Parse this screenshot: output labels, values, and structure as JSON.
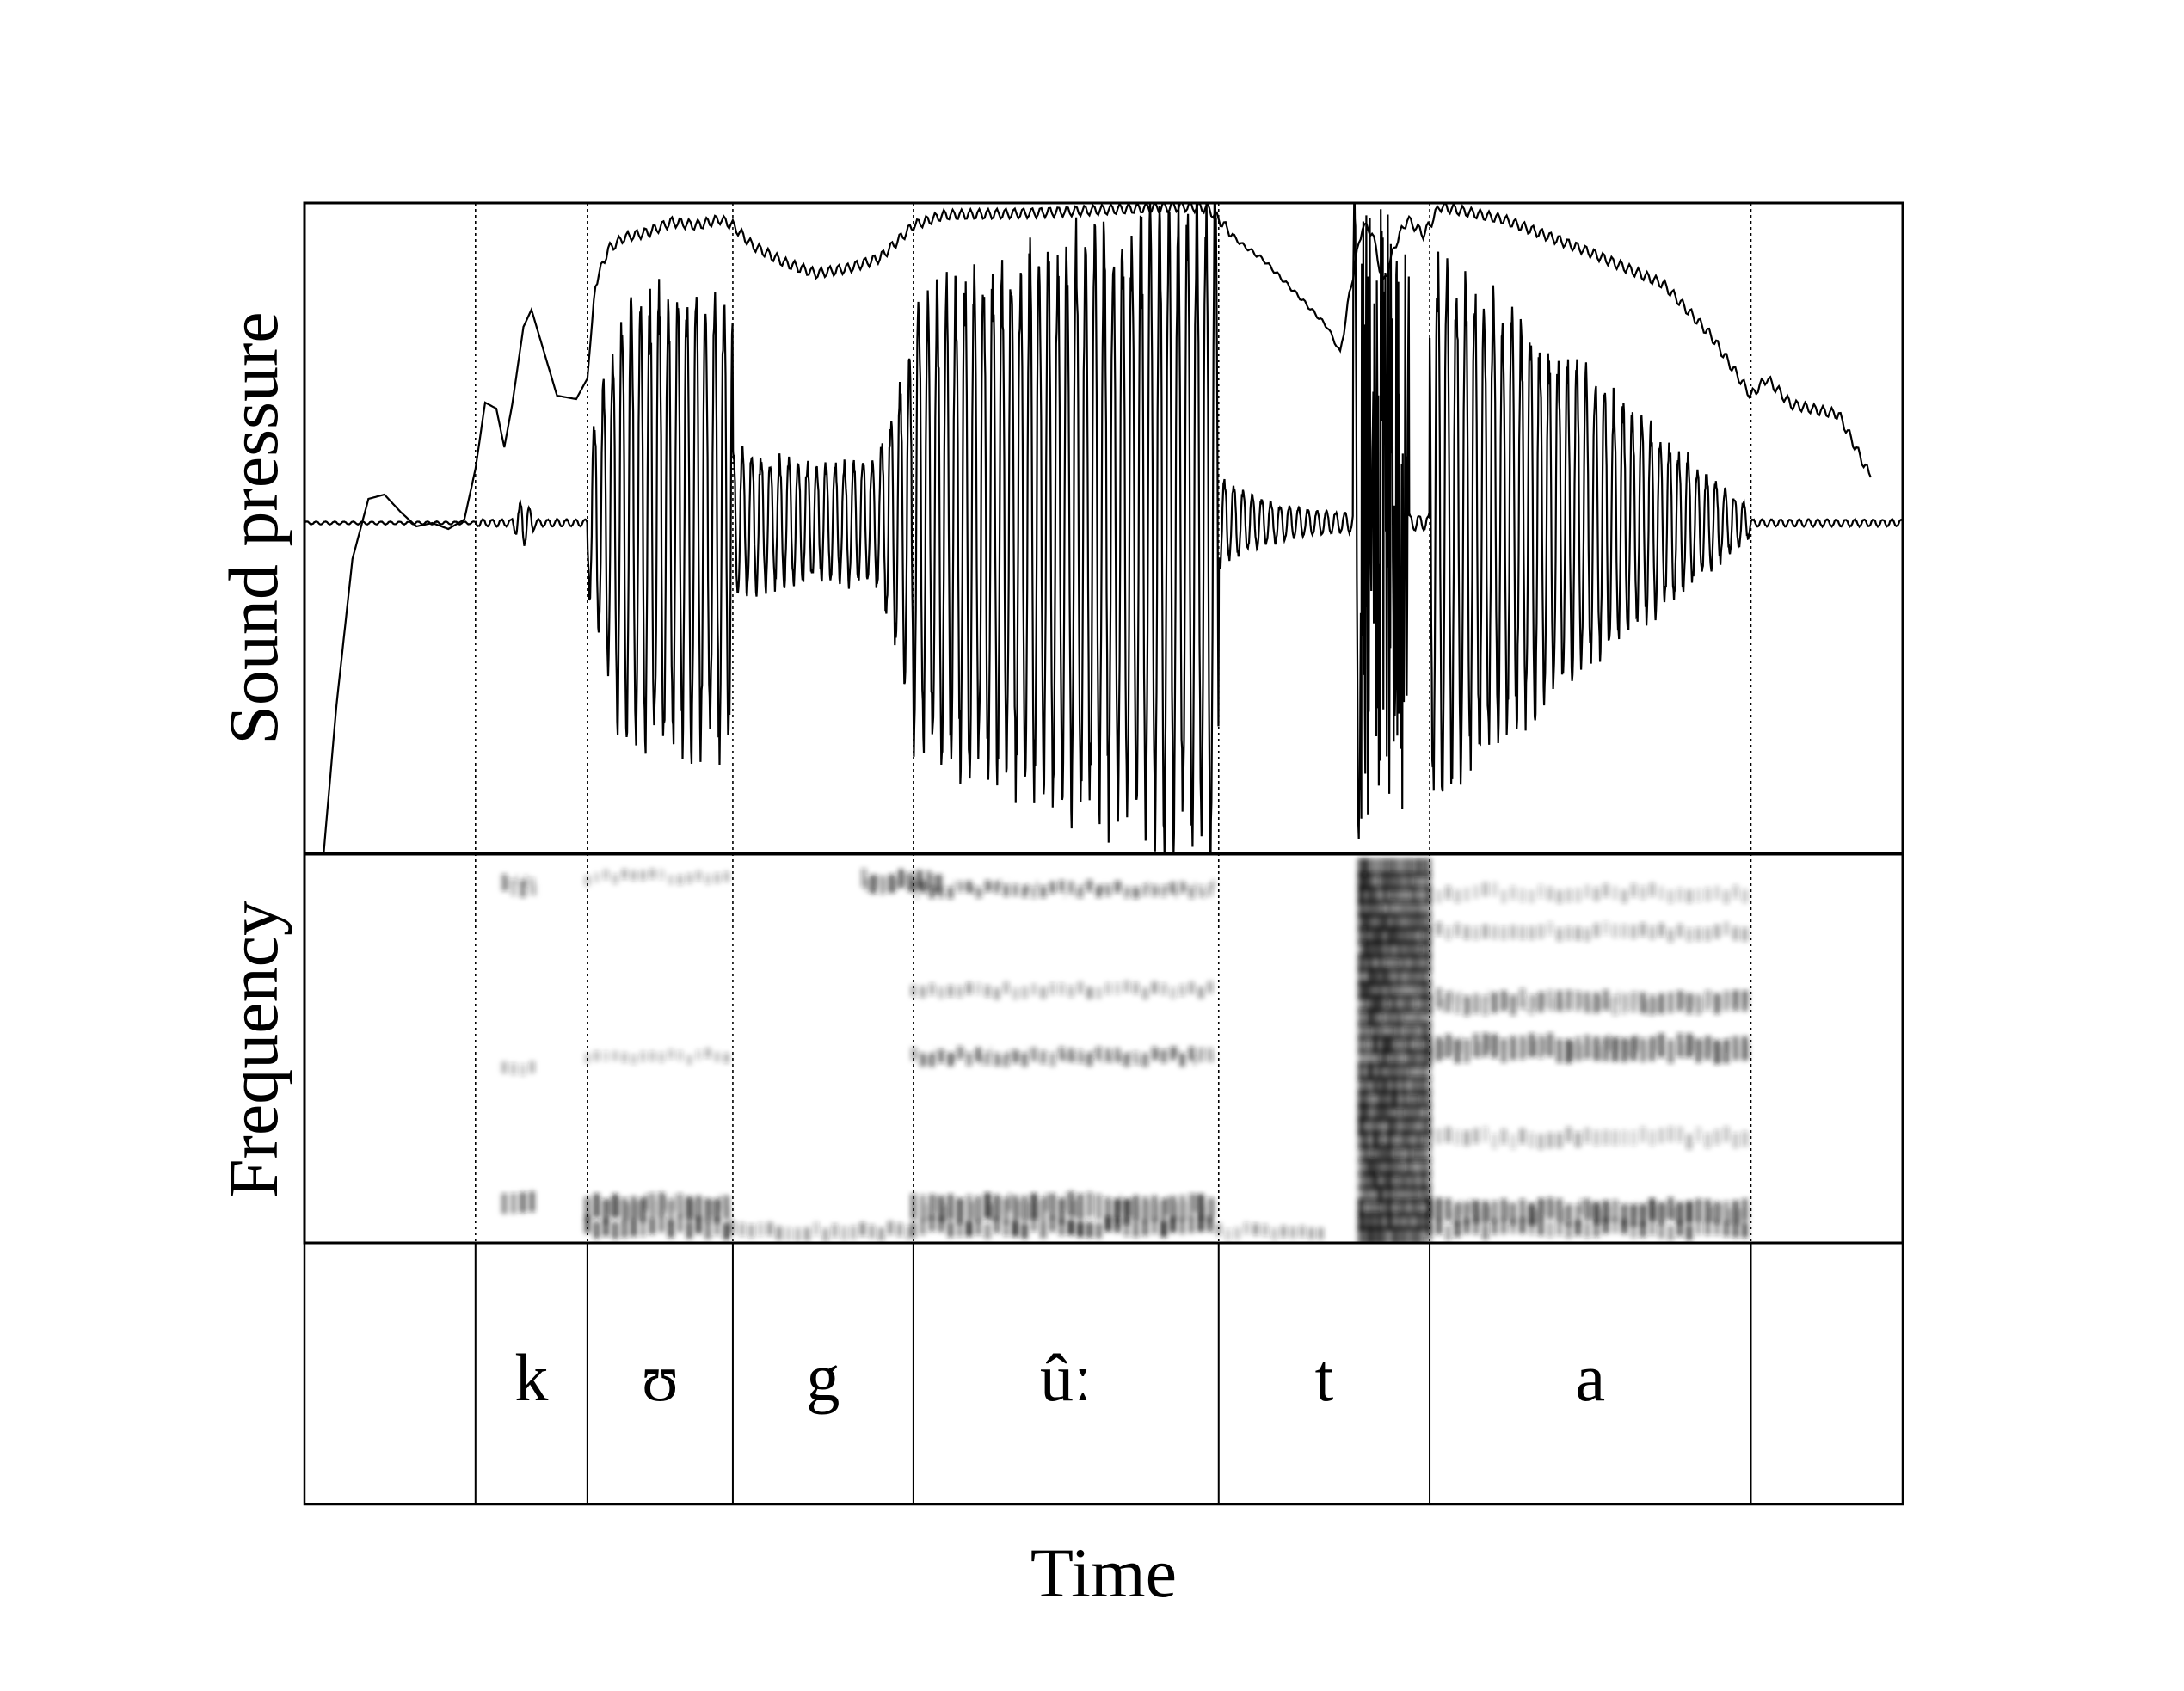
{
  "figure": {
    "waveform_ylabel": "Sound pressure",
    "spectrogram_ylabel": "Frequency",
    "xlabel": "Time"
  },
  "segments": [
    {
      "label": "",
      "start": 0.0,
      "end": 0.107
    },
    {
      "label": "k",
      "start": 0.107,
      "end": 0.177
    },
    {
      "label": "ʊ",
      "start": 0.177,
      "end": 0.268
    },
    {
      "label": "g",
      "start": 0.268,
      "end": 0.381
    },
    {
      "label": "ûː",
      "start": 0.381,
      "end": 0.572
    },
    {
      "label": "t",
      "start": 0.572,
      "end": 0.704
    },
    {
      "label": "a",
      "start": 0.704,
      "end": 0.905
    },
    {
      "label": "",
      "start": 0.905,
      "end": 1.0
    }
  ],
  "colors": {
    "ink": "#000000",
    "spectrogram": "#1a1a1a"
  }
}
